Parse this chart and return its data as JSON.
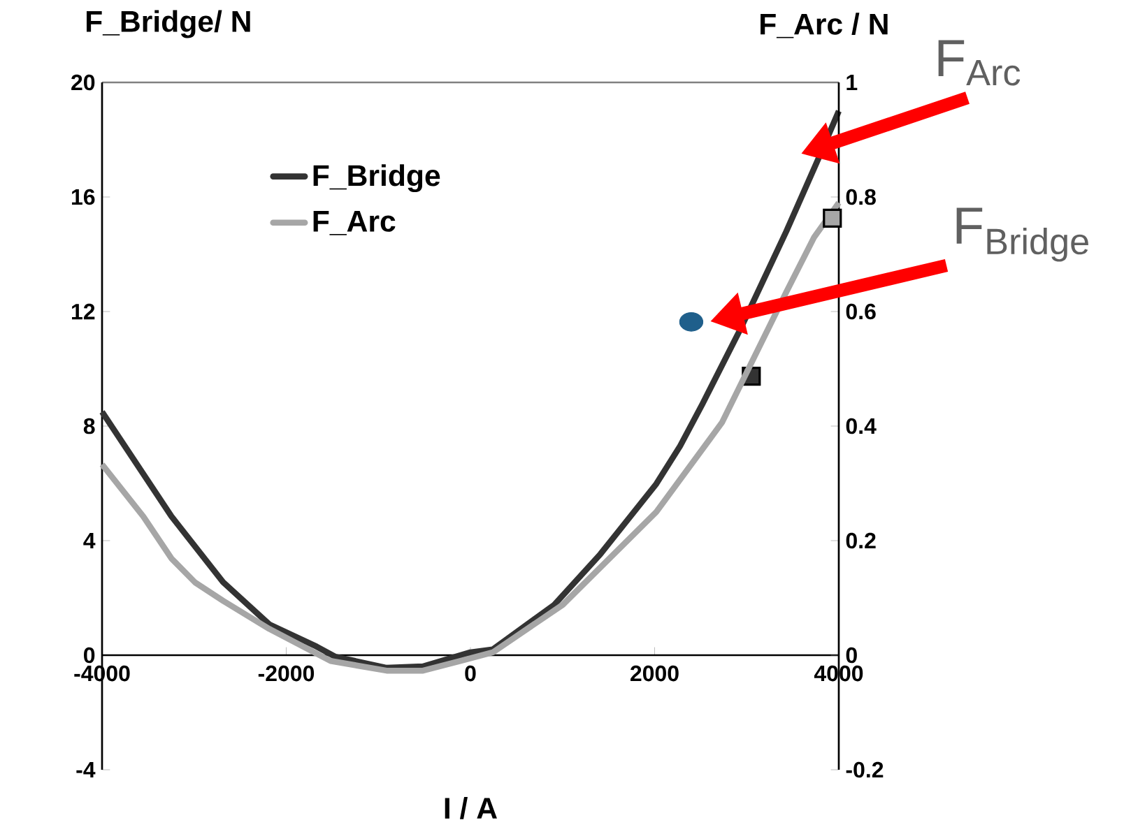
{
  "chart_data": {
    "type": "line",
    "xlabel": "I / A",
    "ylabel": "F_Bridge/ N",
    "y2label": "F_Arc / N",
    "xlim": [
      -4000,
      4000
    ],
    "xticks": [
      -4000,
      -2000,
      0,
      2000,
      4000
    ],
    "ylim": [
      -4,
      20
    ],
    "yticks": [
      -4,
      0,
      4,
      8,
      12,
      16,
      20
    ],
    "y2lim": [
      -0.2,
      1
    ],
    "y2ticks": [
      -0.2,
      0,
      0.2,
      0.4,
      0.6,
      0.8,
      1
    ],
    "legend": "top left",
    "marker": "none",
    "annotations": [
      "F$_{Arc}$",
      "F$_{Bridge}$"
    ],
    "series": [
      {
        "name": "F_Bridge",
        "color": "#333333",
        "x": [
          -4000,
          -3247,
          -2686,
          -2185,
          -1670,
          -1470,
          -910,
          -516,
          0,
          243,
          910,
          1411,
          2018,
          2276,
          2519,
          2929,
          3430,
          3794,
          4000
        ],
        "values": [
          8.5,
          4.85,
          2.55,
          1.08,
          0.3,
          -0.05,
          -0.44,
          -0.39,
          0.1,
          0.2,
          1.76,
          3.53,
          5.98,
          7.3,
          8.77,
          11.37,
          14.8,
          17.45,
          19.0
        ]
      },
      {
        "name": "F_Arc",
        "color": "#a6a6a6",
        "axis": "y2",
        "x": [
          -4000,
          -3551,
          -3247,
          -2990,
          -2686,
          -2185,
          -1518,
          -910,
          -516,
          -106,
          243,
          1002,
          2018,
          2731,
          3430,
          3733,
          4000
        ],
        "values": [
          0.333,
          0.242,
          0.169,
          0.127,
          0.095,
          0.046,
          -0.01,
          -0.027,
          -0.027,
          -0.01,
          0.005,
          0.088,
          0.25,
          0.406,
          0.634,
          0.73,
          0.79
        ]
      },
      {
        "type": "scatter",
        "marker": "square",
        "color": "#333333",
        "x": [
          3050
        ],
        "values": [
          9.74
        ]
      },
      {
        "type": "scatter",
        "marker": "square",
        "color": "#a6a6a6",
        "axis": "y2",
        "x": [
          3930
        ],
        "values": [
          0.763
        ]
      },
      {
        "type": "scatter",
        "marker": "circle",
        "color": "#1f5f8b",
        "x": [
          2398
        ],
        "values": [
          11.64
        ]
      }
    ]
  }
}
